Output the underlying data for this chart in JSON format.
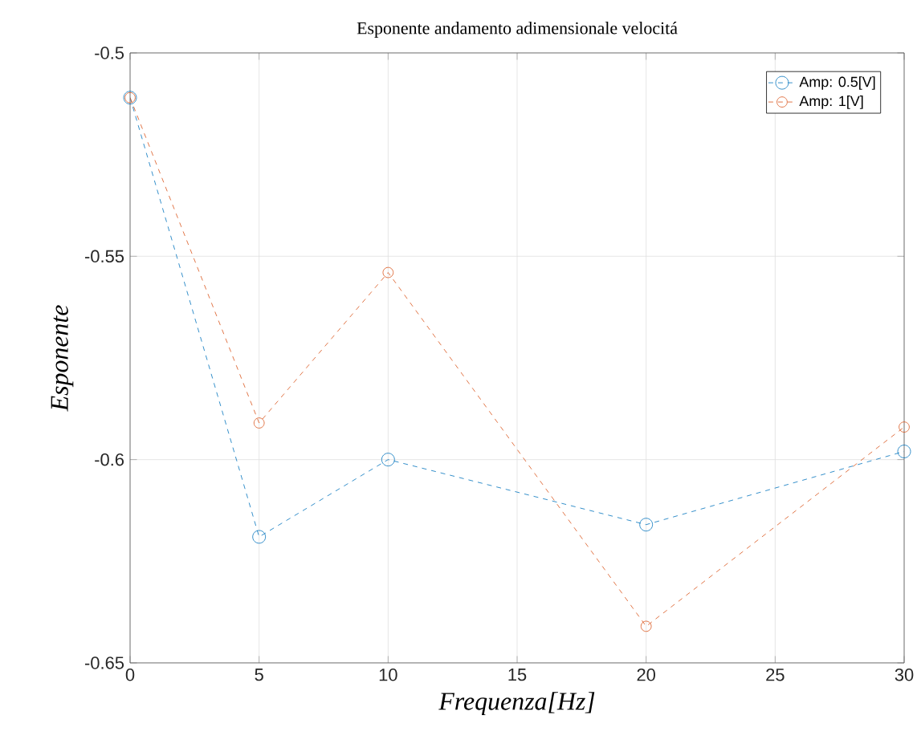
{
  "chart_data": {
    "type": "line",
    "title": "Esponente andamento adimensionale velocitá",
    "xlabel": "Frequenza[Hz]",
    "ylabel": "Esponente",
    "x": [
      0,
      5,
      10,
      20,
      30
    ],
    "series": [
      {
        "name": "Amp: 0.5[V]",
        "color": "#0072bd",
        "values": [
          -0.511,
          -0.619,
          -0.6,
          -0.616,
          -0.598
        ]
      },
      {
        "name": "Amp: 1[V]",
        "color": "#d95319",
        "values": [
          -0.511,
          -0.591,
          -0.554,
          -0.641,
          -0.592
        ]
      }
    ],
    "xlim": [
      0,
      30
    ],
    "ylim": [
      -0.65,
      -0.5
    ],
    "xticks": [
      0,
      5,
      10,
      15,
      20,
      25,
      30
    ],
    "yticks": [
      -0.65,
      -0.6,
      -0.55,
      -0.5
    ],
    "grid": true,
    "legend": "top right",
    "marker": "circle",
    "line_style": "dashed"
  }
}
